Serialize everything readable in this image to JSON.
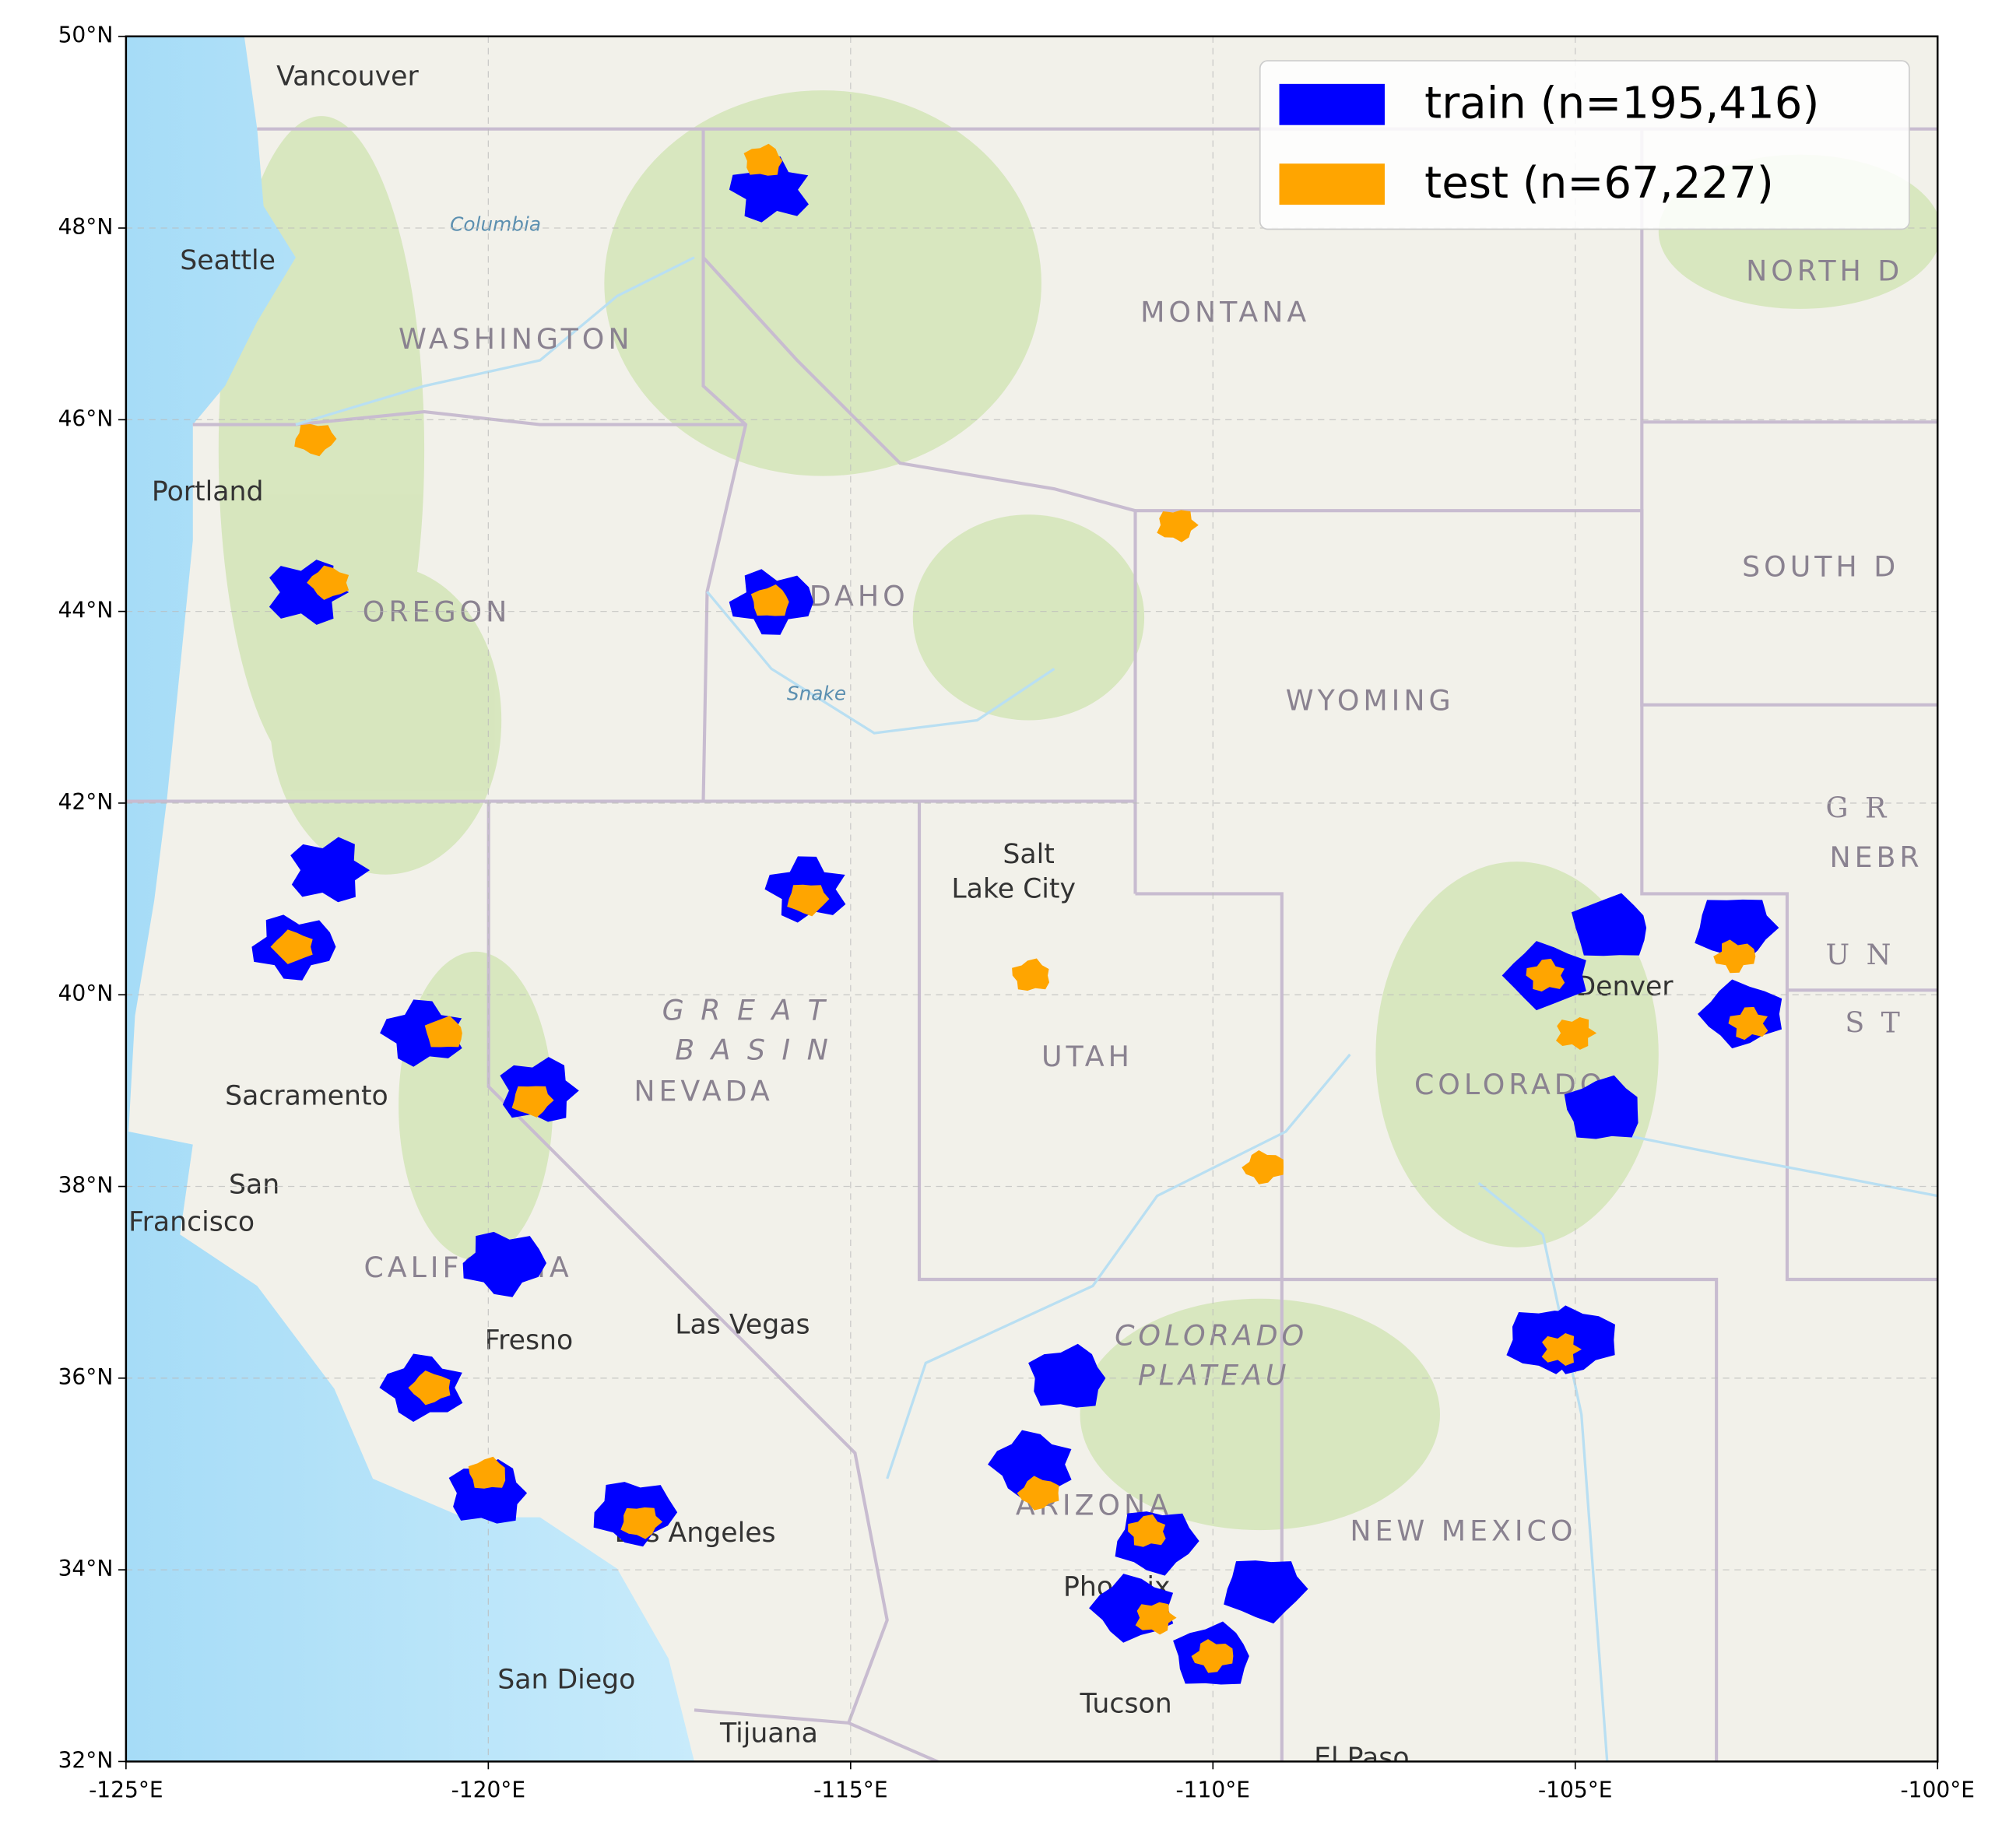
{
  "chart_data": {
    "type": "map",
    "xlim": [
      -125,
      -100
    ],
    "ylim": [
      32,
      50
    ],
    "xticks": [
      {
        "value": -125,
        "label": "-125°E"
      },
      {
        "value": -120,
        "label": "-120°E"
      },
      {
        "value": -115,
        "label": "-115°E"
      },
      {
        "value": -110,
        "label": "-110°E"
      },
      {
        "value": -105,
        "label": "-105°E"
      },
      {
        "value": -100,
        "label": "-100°E"
      }
    ],
    "yticks": [
      {
        "value": 32,
        "label": "32°N"
      },
      {
        "value": 34,
        "label": "34°N"
      },
      {
        "value": 36,
        "label": "36°N"
      },
      {
        "value": 38,
        "label": "38°N"
      },
      {
        "value": 40,
        "label": "40°N"
      },
      {
        "value": 42,
        "label": "42°N"
      },
      {
        "value": 44,
        "label": "44°N"
      },
      {
        "value": 46,
        "label": "46°N"
      },
      {
        "value": 48,
        "label": "48°N"
      },
      {
        "value": 50,
        "label": "50°N"
      }
    ],
    "grid": true,
    "legend": "upper right",
    "series": [
      {
        "name": "train (n=195,416)",
        "color": "#0000ff",
        "x": [
          -116.1,
          -122.5,
          -116.1,
          -115.6,
          -122.2,
          -122.7,
          -120.9,
          -119.3,
          -119.8,
          -120.9,
          -120.0,
          -118.0,
          -112.5,
          -112.0,
          -110.8,
          -111.1,
          -110.0,
          -109.3,
          -105.4,
          -104.5,
          -102.8,
          -102.7,
          -104.6,
          -105.4,
          -105.0
        ],
        "y": [
          48.4,
          44.2,
          44.1,
          41.1,
          41.3,
          40.5,
          39.6,
          39.0,
          37.2,
          35.9,
          34.8,
          34.6,
          35.1,
          36.0,
          34.3,
          33.6,
          33.1,
          33.8,
          40.2,
          40.7,
          40.7,
          39.8,
          38.8,
          36.4,
          36.4
        ]
      },
      {
        "name": "test (n=67,227)",
        "color": "#ffa500",
        "x": [
          -116.2,
          -122.4,
          -122.2,
          -116.1,
          -115.6,
          -122.7,
          -120.6,
          -119.4,
          -120.8,
          -120.0,
          -117.9,
          -112.4,
          -112.5,
          -110.5,
          -109.3,
          -110.9,
          -110.8,
          -110.0,
          -105.4,
          -105.0,
          -102.8,
          -102.6,
          -105.2
        ],
        "y": [
          48.7,
          45.8,
          44.3,
          44.1,
          41.0,
          40.5,
          39.6,
          38.9,
          35.9,
          35.0,
          34.5,
          34.8,
          40.2,
          44.9,
          38.2,
          34.4,
          33.5,
          33.1,
          40.2,
          39.6,
          40.4,
          39.7,
          36.3
        ]
      }
    ],
    "map_labels": [
      "Vancouver",
      "Seattle",
      "Portland",
      "WASHINGTON",
      "OREGON",
      "IDAHO",
      "MONTANA",
      "WYOMING",
      "NORTH D",
      "SOUTH D",
      "NEBR",
      "Salt",
      "Lake City",
      "G R E A T",
      "B A S I N",
      "NEVADA",
      "UTAH",
      "COLORADO",
      "Denver",
      "Sacramento",
      "San",
      "Francisco",
      "CALIFORNIA",
      "Fresno",
      "Las Vegas",
      "Los Angeles",
      "San Diego",
      "Tijuana",
      "COLORADO",
      "PLATEAU",
      "ARIZONA",
      "Phoenix",
      "Tucson",
      "NEW MEXICO",
      "El Paso",
      "U N",
      "S T",
      "Snake",
      "Columbia",
      "G R"
    ]
  }
}
